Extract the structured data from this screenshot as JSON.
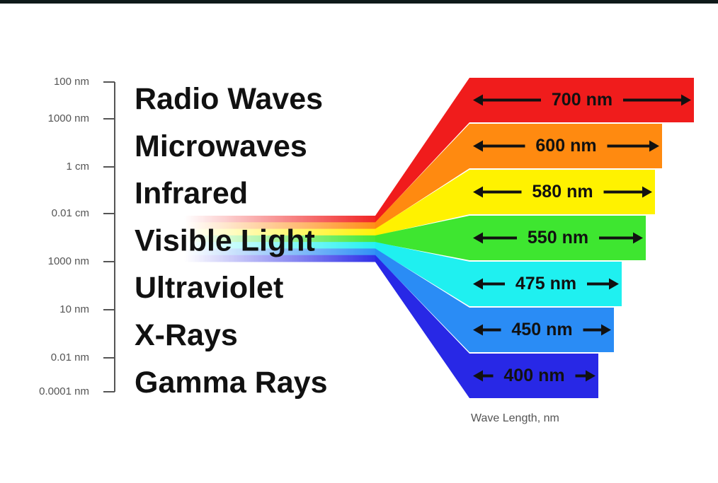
{
  "scale": {
    "labels": [
      "100 nm",
      "1000 nm",
      "1 cm",
      "0.01 cm",
      "1000 nm",
      "10 nm",
      "0.01 nm",
      "0.0001 nm"
    ]
  },
  "categories": [
    "Radio Waves",
    "Microwaves",
    "Infrared",
    "Visible Light",
    "Ultraviolet",
    "X-Rays",
    "Gamma Rays"
  ],
  "bands": [
    {
      "label": "700 nm",
      "color": "#f01c1c"
    },
    {
      "label": "600 nm",
      "color": "#ff8a10"
    },
    {
      "label": "580 nm",
      "color": "#fff200"
    },
    {
      "label": "550 nm",
      "color": "#3ee630"
    },
    {
      "label": "475 nm",
      "color": "#1ff0f0"
    },
    {
      "label": "450 nm",
      "color": "#2a8cf5"
    },
    {
      "label": "400 nm",
      "color": "#2828e6"
    }
  ],
  "axis_caption": "Wave Length, nm"
}
